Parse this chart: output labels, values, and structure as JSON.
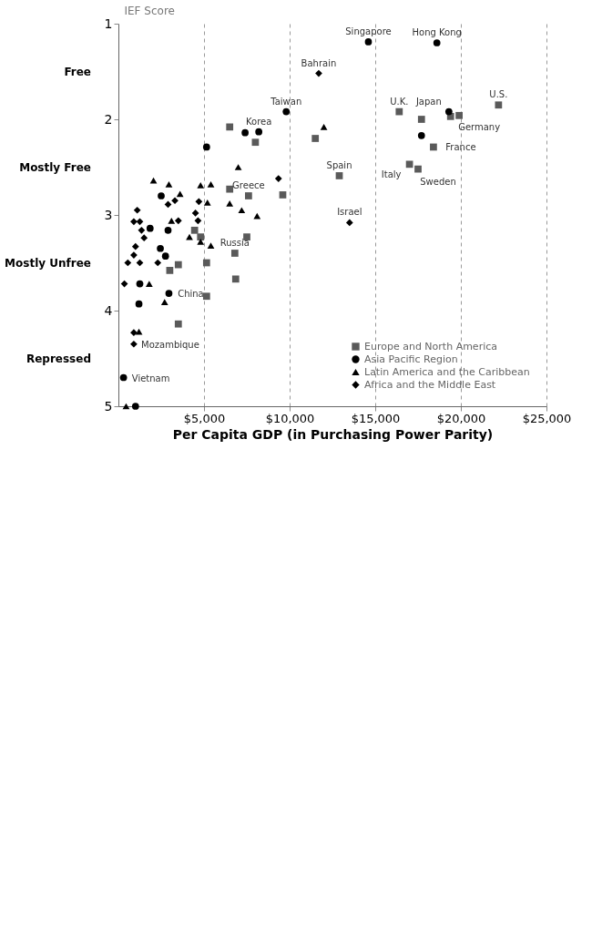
{
  "chart_data": {
    "type": "scatter",
    "xlabel": "Per Capita GDP (in Purchasing Power Parity)",
    "ylabel": "IEF Score",
    "xlim": [
      0,
      25000
    ],
    "xticks": [
      {
        "value": 5000,
        "label": "$5,000"
      },
      {
        "value": 10000,
        "label": "$10,000"
      },
      {
        "value": 15000,
        "label": "$15,000"
      },
      {
        "value": 20000,
        "label": "$20,000"
      },
      {
        "value": 25000,
        "label": "$25,000"
      }
    ],
    "ylim": [
      5,
      1
    ],
    "yticks": [
      1,
      2,
      3,
      4,
      5
    ],
    "grid": "x",
    "legend": "bottom right",
    "series": [
      {
        "name": "Europe and North America",
        "color": "#5a5a5a",
        "marker": "square",
        "x": [
          22200,
          19900,
          19400,
          18400,
          17700,
          17500,
          17000,
          16400,
          12900,
          11500,
          9600,
          8000,
          7600,
          7500,
          6500,
          6500,
          4800,
          4450,
          6800,
          6850,
          5150,
          5150,
          3500,
          3500,
          3000
        ],
        "values": [
          1.85,
          1.96,
          1.97,
          2.29,
          2.0,
          2.52,
          2.47,
          1.92,
          2.59,
          2.2,
          2.79,
          2.24,
          2.8,
          3.23,
          2.08,
          2.73,
          3.23,
          3.16,
          3.4,
          3.67,
          3.5,
          3.85,
          4.14,
          3.52,
          3.58
        ]
      },
      {
        "name": "Asia Pacific Region",
        "color": "#000000",
        "marker": "circle",
        "x": [
          19300,
          17700,
          18600,
          14600,
          9800,
          8200,
          7400,
          5150,
          2500,
          2900,
          1850,
          2450,
          2750,
          2950,
          1250,
          1200,
          300,
          1000
        ],
        "values": [
          1.92,
          2.17,
          1.2,
          1.19,
          1.92,
          2.13,
          2.14,
          2.29,
          2.8,
          3.16,
          3.14,
          3.35,
          3.43,
          3.82,
          3.72,
          3.93,
          4.7,
          5.0
        ]
      },
      {
        "name": "Latin America and the Caribbean",
        "color": "#000000",
        "marker": "triangle",
        "x": [
          12000,
          8100,
          7200,
          7000,
          6500,
          5400,
          5200,
          4800,
          4150,
          3600,
          3100,
          2950,
          2050,
          5400,
          4800,
          2700,
          1800,
          1200,
          450
        ],
        "values": [
          2.08,
          3.01,
          2.95,
          2.5,
          2.88,
          2.68,
          2.87,
          2.69,
          3.23,
          2.78,
          3.06,
          2.68,
          2.64,
          3.32,
          3.28,
          3.91,
          3.72,
          4.22,
          5.0
        ]
      },
      {
        "name": "Africa and the Middle East",
        "color": "#000000",
        "marker": "diamond",
        "x": [
          13500,
          11700,
          9350,
          4700,
          4500,
          4650,
          3300,
          3500,
          2900,
          1100,
          1250,
          900,
          1350,
          1500,
          2300,
          1250,
          550,
          350,
          900,
          1000,
          900,
          900
        ],
        "values": [
          3.08,
          1.52,
          2.62,
          2.86,
          2.98,
          3.06,
          2.85,
          3.06,
          2.89,
          2.95,
          3.07,
          3.07,
          3.16,
          3.24,
          3.5,
          3.5,
          3.5,
          3.72,
          3.42,
          3.33,
          4.23,
          4.35
        ]
      }
    ],
    "annotations": [
      "Free",
      "Mostly Free",
      "Mostly Unfree",
      "Repressed",
      {
        "text": "U.S.",
        "x": 22200,
        "y": 1.85
      },
      {
        "text": "Germany",
        "x": 19900,
        "y": 1.96
      },
      {
        "text": "Japan",
        "x": 19300,
        "y": 1.92
      },
      {
        "text": "Hong Kong",
        "x": 18600,
        "y": 1.2
      },
      {
        "text": "France",
        "x": 18400,
        "y": 2.29
      },
      {
        "text": "Sweden",
        "x": 17500,
        "y": 2.52
      },
      {
        "text": "Italy",
        "x": 17000,
        "y": 2.47
      },
      {
        "text": "U.K.",
        "x": 16400,
        "y": 1.92
      },
      {
        "text": "Singapore",
        "x": 14600,
        "y": 1.19
      },
      {
        "text": "Israel",
        "x": 13500,
        "y": 3.08
      },
      {
        "text": "Spain",
        "x": 12900,
        "y": 2.59
      },
      {
        "text": "Bahrain",
        "x": 11700,
        "y": 1.52
      },
      {
        "text": "Taiwan",
        "x": 9800,
        "y": 1.92
      },
      {
        "text": "Korea",
        "x": 8200,
        "y": 2.13
      },
      {
        "text": "Greece",
        "x": 7600,
        "y": 2.8
      },
      {
        "text": "Russia",
        "x": 6800,
        "y": 3.4
      },
      {
        "text": "China",
        "x": 2950,
        "y": 3.82
      },
      {
        "text": "Mozambique",
        "x": 900,
        "y": 4.35
      },
      {
        "text": "Vietnam",
        "x": 300,
        "y": 4.7
      }
    ]
  }
}
